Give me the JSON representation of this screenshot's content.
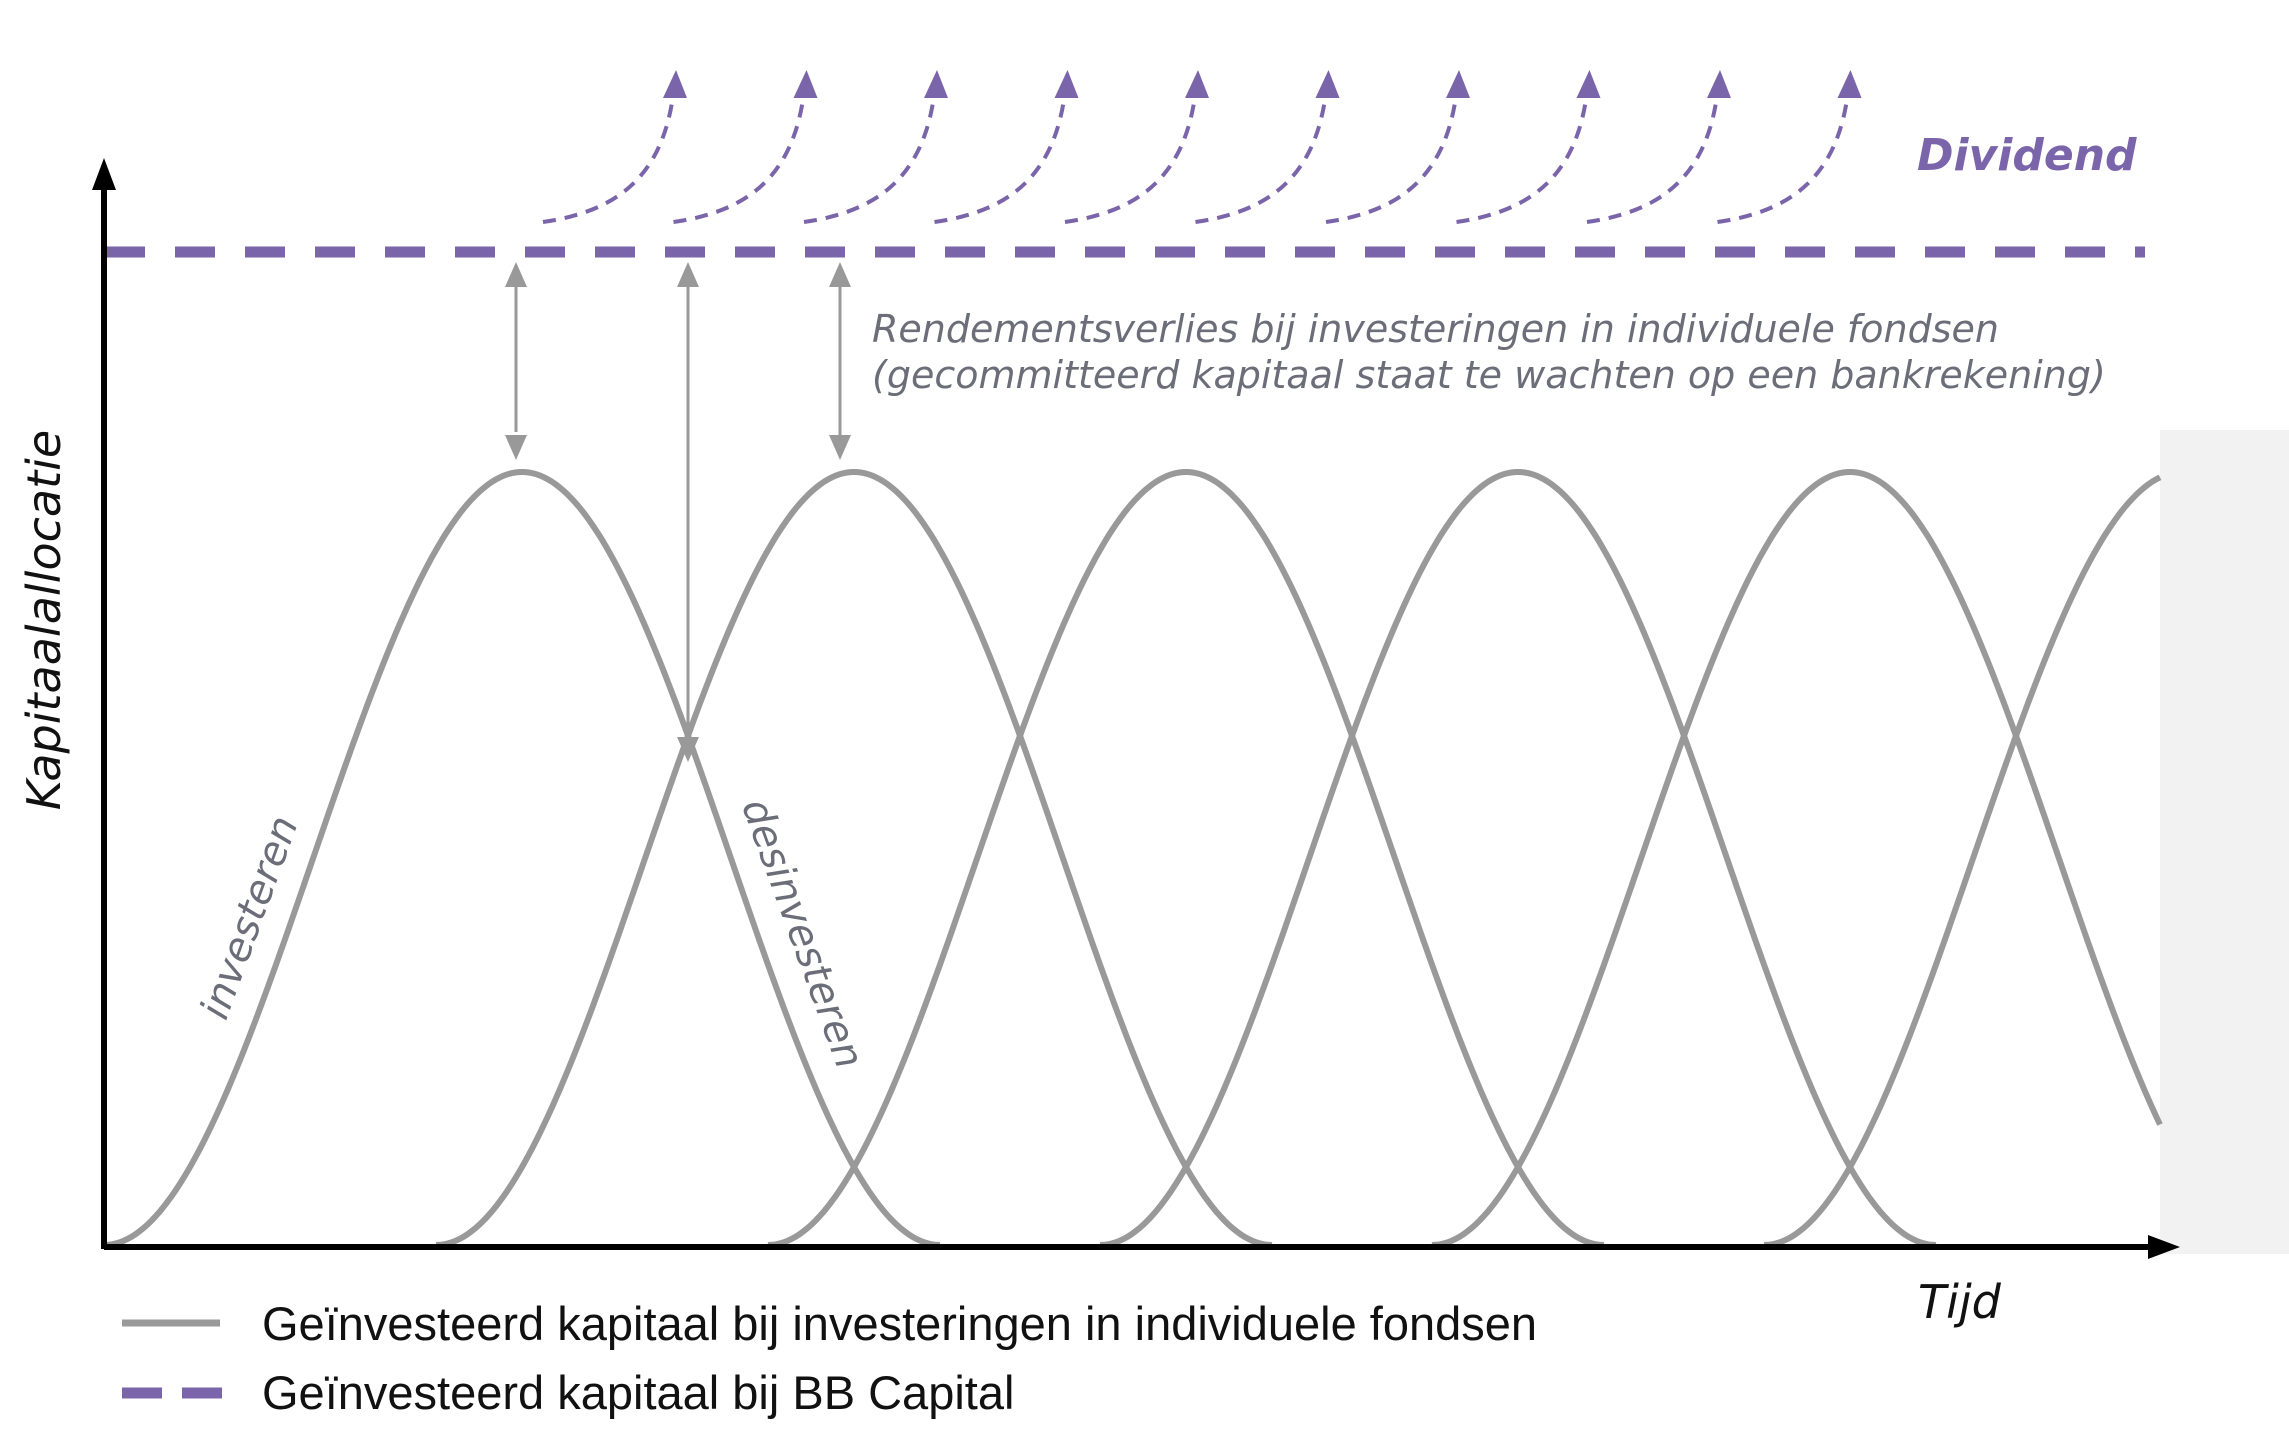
{
  "axes": {
    "y_label": "Kapitaalallocatie",
    "x_label": "Tijd"
  },
  "labels": {
    "dividend": "Dividend",
    "note_line1": "Rendementsverlies bij investeringen in individuele fondsen",
    "note_line2": "(gecommitteerd kapitaal staat te wachten op een bankrekening)",
    "investeren": "investeren",
    "desinvesteren": "desinvesteren"
  },
  "legend": [
    {
      "label": "Geïnvesteerd kapitaal bij investeringen in individuele fondsen",
      "style": "solid",
      "color": "#999999"
    },
    {
      "label": "Geïnvesteerd kapitaal bij BB Capital",
      "style": "dashed",
      "color": "#7b65aa"
    }
  ],
  "colors": {
    "curve": "#999999",
    "bb_capital": "#7b65aa",
    "arrow": "#999999",
    "axis": "#000000",
    "side_panel": "#f2f2f2"
  },
  "fund_curves_count": 6,
  "dividend_arrows_count": 10
}
